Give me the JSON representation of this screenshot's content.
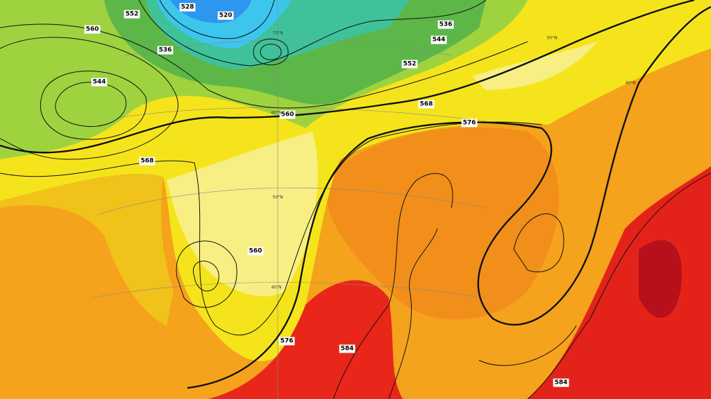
{
  "contour_labels": [
    "560",
    "560",
    "560",
    "552",
    "552",
    "544",
    "544",
    "536",
    "536",
    "528",
    "520",
    "568",
    "568",
    "576",
    "576",
    "584",
    "584"
  ],
  "latitude_labels": [
    "70°N",
    "60°N",
    "50°N",
    "40°N",
    "50°N",
    "40°N"
  ]
}
